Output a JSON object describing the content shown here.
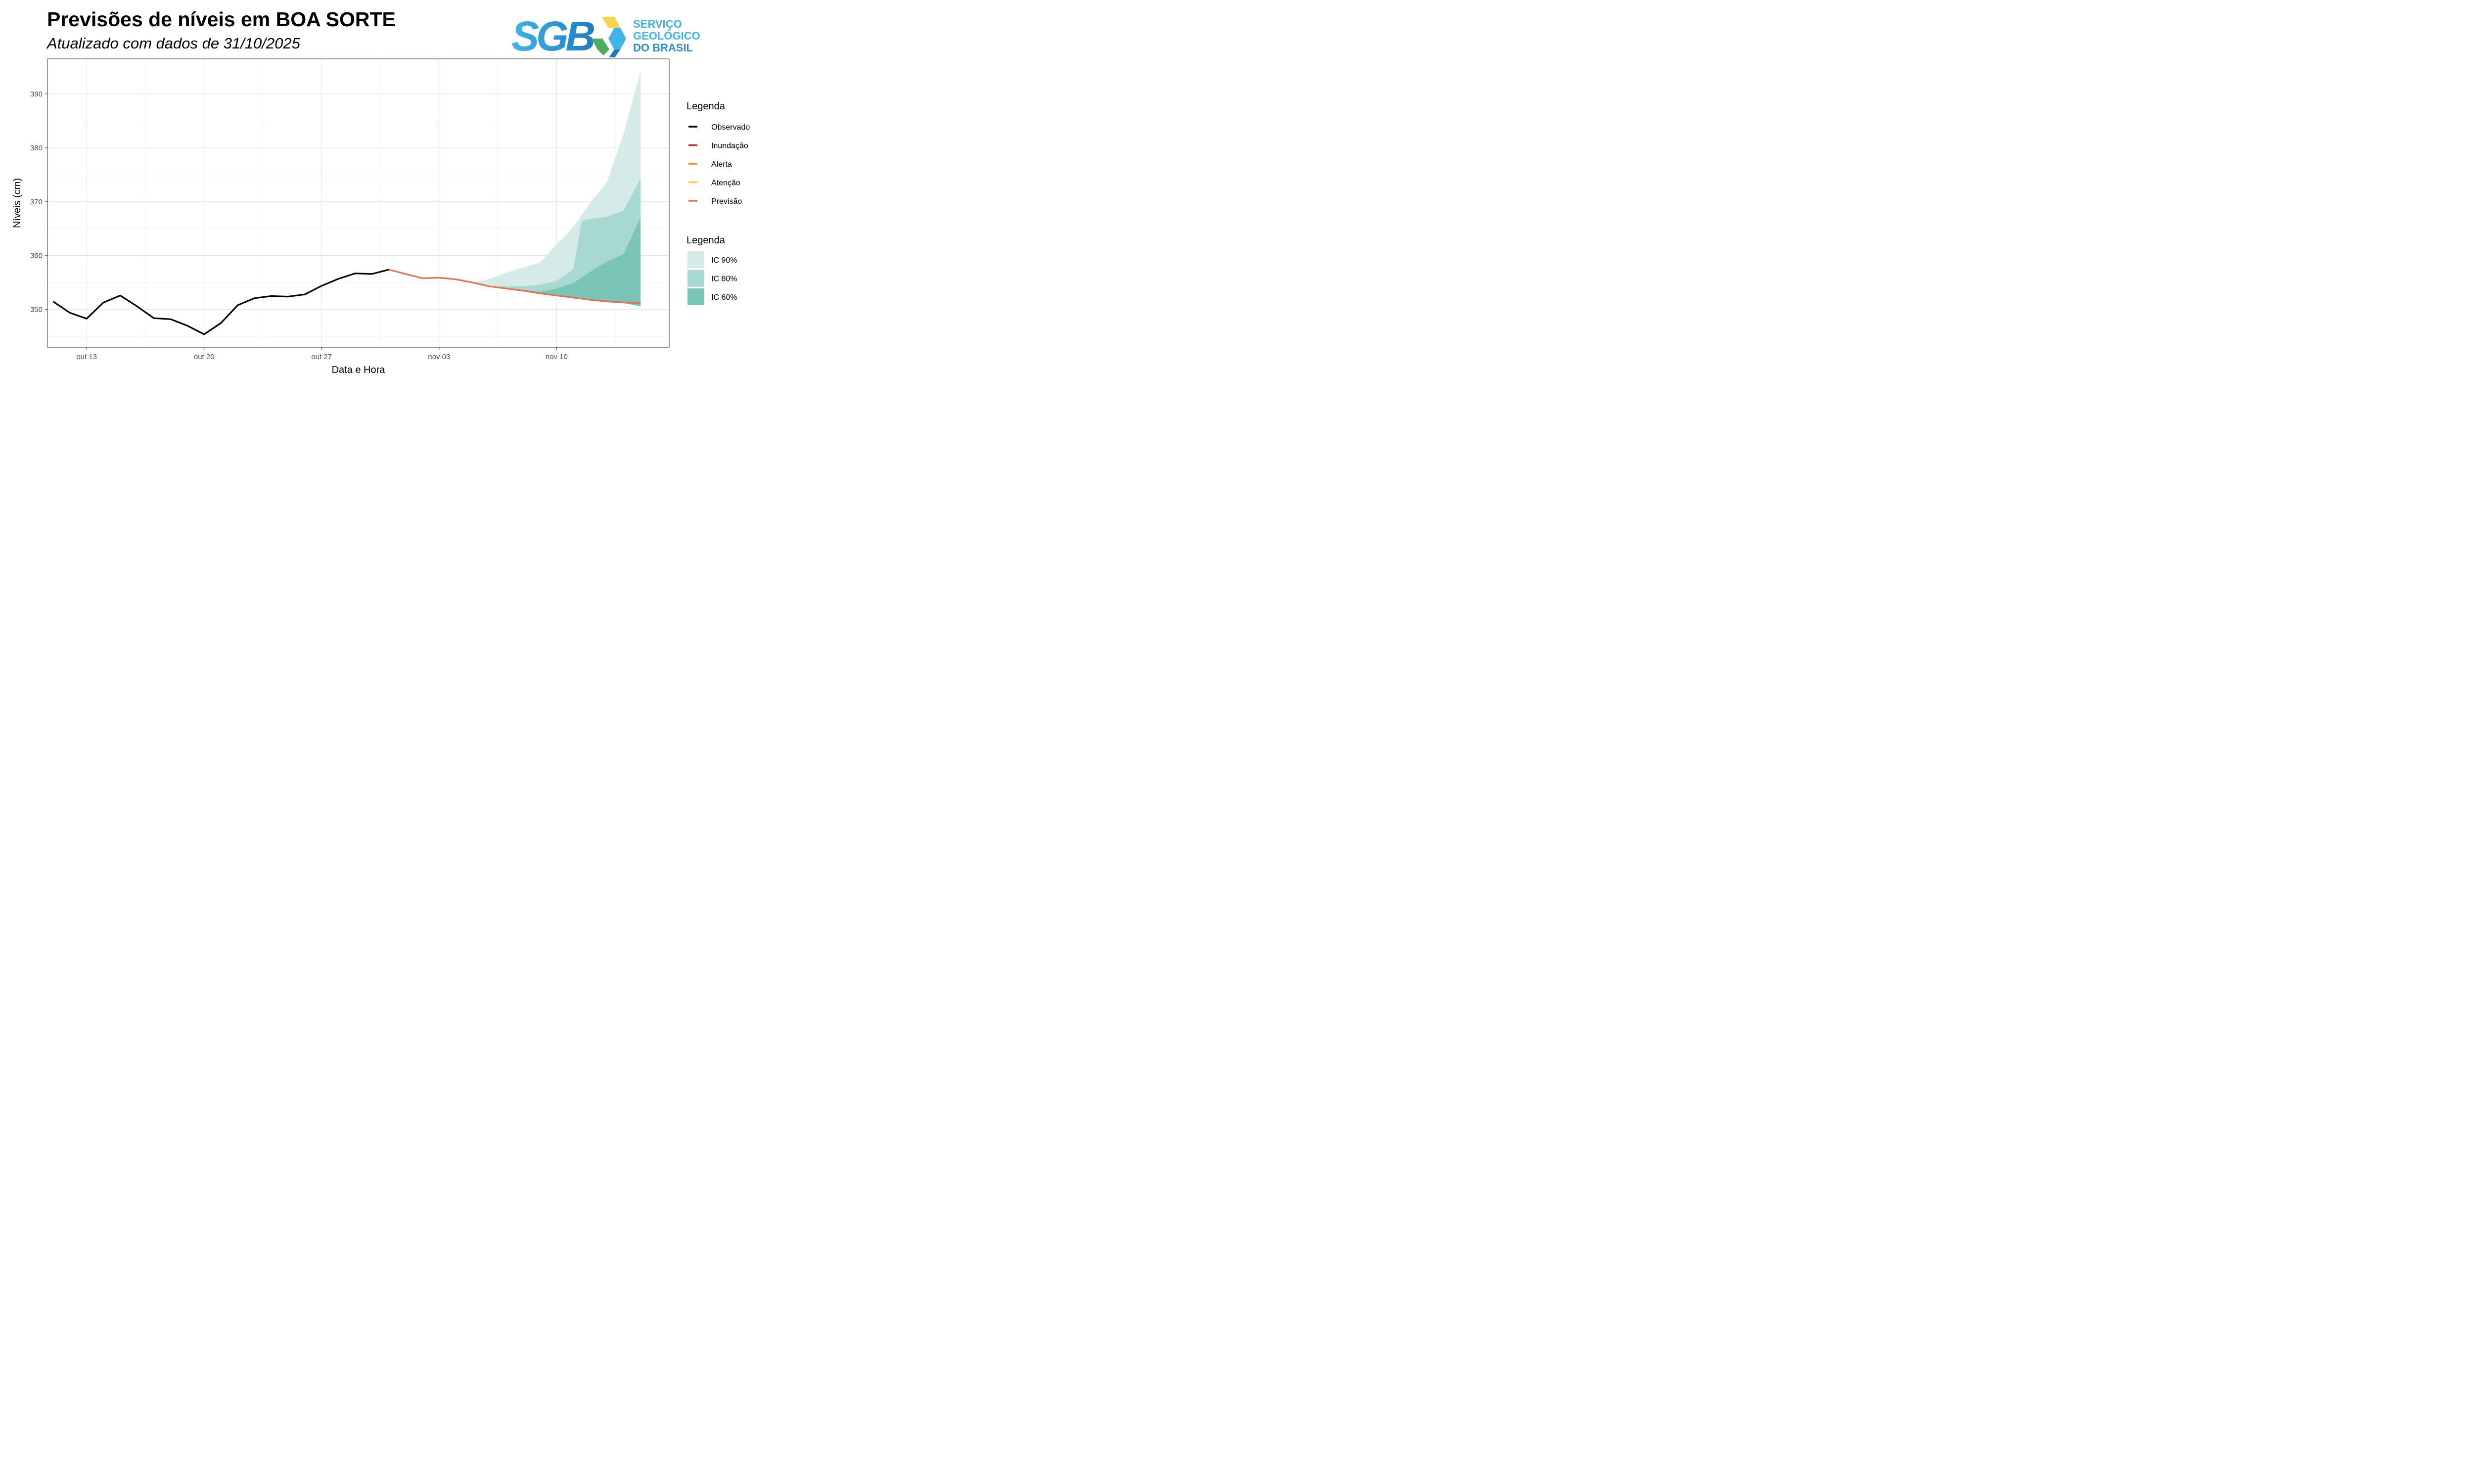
{
  "header": {
    "title": "Previsões de níveis em BOA SORTE",
    "subtitle": "Atualizado com dados de 31/10/2025"
  },
  "logo": {
    "mark": "SGB",
    "name_lines": [
      "SERVIÇO",
      "GEOLÓGICO",
      "DO BRASIL"
    ],
    "colors": {
      "light_blue": "#3fb6e8",
      "blue": "#1f7bc0",
      "green": "#4cae5c",
      "yellow": "#f9d44a"
    }
  },
  "chart_data": {
    "type": "line",
    "xlabel": "Data e Hora",
    "ylabel": "Níveis (cm)",
    "x_ticks": [
      {
        "date": "2025-10-13",
        "label": "out 13"
      },
      {
        "date": "2025-10-20",
        "label": "out 20"
      },
      {
        "date": "2025-10-27",
        "label": "out 27"
      },
      {
        "date": "2025-11-03",
        "label": "nov 03"
      },
      {
        "date": "2025-11-10",
        "label": "nov 10"
      }
    ],
    "y_ticks": [
      350,
      360,
      370,
      380,
      390
    ],
    "xlim": [
      "2025-10-10T16:00",
      "2025-11-16T17:00"
    ],
    "ylim": [
      343,
      396.5
    ],
    "grid": true,
    "legend_placement": "right",
    "series": [
      {
        "name": "Observado",
        "color": "#000000",
        "points": [
          [
            "2025-10-11",
            351.5
          ],
          [
            "2025-10-12",
            349.4
          ],
          [
            "2025-10-13",
            348.3
          ],
          [
            "2025-10-14",
            351.3
          ],
          [
            "2025-10-15",
            352.6
          ],
          [
            "2025-10-16",
            350.6
          ],
          [
            "2025-10-17",
            348.4
          ],
          [
            "2025-10-18",
            348.2
          ],
          [
            "2025-10-19",
            347.0
          ],
          [
            "2025-10-20",
            345.4
          ],
          [
            "2025-10-21",
            347.5
          ],
          [
            "2025-10-22",
            350.8
          ],
          [
            "2025-10-23",
            352.1
          ],
          [
            "2025-10-24",
            352.5
          ],
          [
            "2025-10-25",
            352.4
          ],
          [
            "2025-10-26",
            352.8
          ],
          [
            "2025-10-27",
            354.4
          ],
          [
            "2025-10-28",
            355.7
          ],
          [
            "2025-10-29",
            356.7
          ],
          [
            "2025-10-30",
            356.6
          ],
          [
            "2025-10-31",
            357.4
          ]
        ]
      },
      {
        "name": "Previsão",
        "color": "#e76f51",
        "points": [
          [
            "2025-10-31",
            357.4
          ],
          [
            "2025-11-01",
            356.6
          ],
          [
            "2025-11-02",
            355.8
          ],
          [
            "2025-11-03",
            355.9
          ],
          [
            "2025-11-04",
            355.6
          ],
          [
            "2025-11-05",
            355.0
          ],
          [
            "2025-11-06",
            354.3
          ],
          [
            "2025-11-07",
            353.9
          ],
          [
            "2025-11-08",
            353.5
          ],
          [
            "2025-11-09",
            353.0
          ],
          [
            "2025-11-10",
            352.6
          ],
          [
            "2025-11-11",
            352.2
          ],
          [
            "2025-11-12",
            351.8
          ],
          [
            "2025-11-13",
            351.5
          ],
          [
            "2025-11-14",
            351.3
          ],
          [
            "2025-11-15",
            351.2
          ]
        ]
      }
    ],
    "bands": [
      {
        "name": "IC 90%",
        "color": "#d4ebe8",
        "points": [
          [
            "2025-11-05",
            355.0,
            355.0
          ],
          [
            "2025-11-06",
            354.3,
            355.7
          ],
          [
            "2025-11-07",
            353.9,
            356.8
          ],
          [
            "2025-11-08",
            353.5,
            357.8
          ],
          [
            "2025-11-09",
            353.0,
            358.7
          ],
          [
            "2025-11-10",
            352.6,
            362.1
          ],
          [
            "2025-11-11",
            352.2,
            365.3
          ],
          [
            "2025-11-12",
            351.8,
            369.8
          ],
          [
            "2025-11-13",
            351.5,
            373.6
          ],
          [
            "2025-11-14",
            351.2,
            382.7
          ],
          [
            "2025-11-15",
            350.6,
            394.2
          ]
        ]
      },
      {
        "name": "IC 80%",
        "color": "#a7d8d1",
        "points": [
          [
            "2025-11-06",
            354.3,
            354.3
          ],
          [
            "2025-11-07",
            353.9,
            354.3
          ],
          [
            "2025-11-08",
            353.5,
            354.3
          ],
          [
            "2025-11-09",
            353.0,
            354.6
          ],
          [
            "2025-11-10",
            352.6,
            355.3
          ],
          [
            "2025-11-11",
            352.2,
            357.5
          ],
          [
            "2025-11-11T12:00",
            352.0,
            366.4
          ],
          [
            "2025-11-12",
            351.8,
            366.8
          ],
          [
            "2025-11-13",
            351.5,
            367.2
          ],
          [
            "2025-11-14",
            351.2,
            368.4
          ],
          [
            "2025-11-15",
            350.6,
            374.3
          ]
        ]
      },
      {
        "name": "IC 60%",
        "color": "#7ac4b8",
        "points": [
          [
            "2025-11-07",
            353.9,
            353.9
          ],
          [
            "2025-11-08",
            353.5,
            353.6
          ],
          [
            "2025-11-09",
            353.0,
            353.3
          ],
          [
            "2025-11-10",
            352.6,
            353.9
          ],
          [
            "2025-11-11",
            352.2,
            354.9
          ],
          [
            "2025-11-12",
            351.8,
            357.0
          ],
          [
            "2025-11-13",
            351.5,
            358.9
          ],
          [
            "2025-11-14",
            351.2,
            360.3
          ],
          [
            "2025-11-15",
            350.6,
            367.1
          ]
        ]
      }
    ],
    "legend_lines": {
      "title": "Legenda",
      "items": [
        {
          "label": "Observado",
          "color": "#000000"
        },
        {
          "label": "Inundação",
          "color": "#d62728"
        },
        {
          "label": "Alerta",
          "color": "#f28e1c"
        },
        {
          "label": "Atenção",
          "color": "#fdbe4d"
        },
        {
          "label": "Previsão",
          "color": "#e76f51"
        }
      ]
    },
    "legend_bands": {
      "title": "Legenda",
      "items": [
        {
          "label": "IC 90%",
          "color": "#d4ebe8"
        },
        {
          "label": "IC 80%",
          "color": "#a7d8d1"
        },
        {
          "label": "IC 60%",
          "color": "#7ac4b8"
        }
      ]
    }
  }
}
